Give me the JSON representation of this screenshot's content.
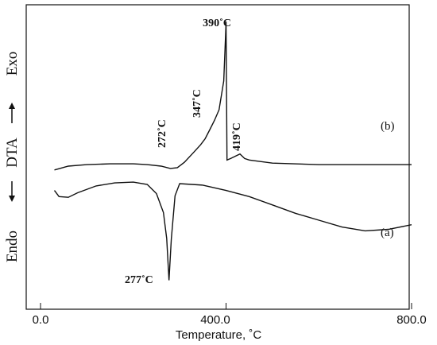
{
  "chart_data": {
    "type": "line",
    "title": "",
    "xlabel": "Temperature, ˚C",
    "ylabel": "DTA",
    "y_top_label": "Exo",
    "y_bottom_label": "Endo",
    "xlim": [
      0,
      800
    ],
    "xticks": [
      0,
      400,
      800
    ],
    "xtick_labels": [
      "0.0",
      "400.0",
      "800.0"
    ],
    "grid": false,
    "legend": "none",
    "y_units": "arbitrary (relative DTA signal, up = exothermic)",
    "ylim": [
      -10,
      30
    ],
    "series": [
      {
        "name": "(b)",
        "x": [
          30,
          60,
          100,
          150,
          200,
          230,
          260,
          280,
          295,
          310,
          330,
          345,
          355,
          365,
          375,
          385,
          395,
          399,
          400,
          402,
          410,
          420,
          430,
          440,
          450,
          500,
          600,
          700,
          800
        ],
        "y": [
          8.3,
          8.8,
          9.0,
          9.1,
          9.1,
          9.0,
          8.8,
          8.5,
          8.6,
          9.3,
          10.6,
          11.6,
          12.4,
          13.6,
          14.8,
          16.2,
          20.0,
          26.0,
          27.8,
          9.6,
          9.8,
          10.1,
          10.4,
          9.8,
          9.6,
          9.2,
          9.0,
          9.0,
          9.0
        ]
      },
      {
        "name": "(a)",
        "x": [
          30,
          40,
          60,
          80,
          120,
          160,
          200,
          230,
          250,
          265,
          272,
          277,
          282,
          290,
          300,
          350,
          400,
          450,
          500,
          550,
          600,
          650,
          700,
          750,
          800
        ],
        "y": [
          5.6,
          4.8,
          4.7,
          5.3,
          6.2,
          6.6,
          6.7,
          6.4,
          5.2,
          2.7,
          -0.7,
          -6.2,
          -0.8,
          4.9,
          6.5,
          6.3,
          5.6,
          4.8,
          3.7,
          2.6,
          1.7,
          0.8,
          0.3,
          0.5,
          1.1
        ]
      }
    ],
    "annotations": [
      "390˚C",
      "347˚C",
      "272˚C",
      "419˚C",
      "277˚C"
    ],
    "series_labels": [
      "(b)",
      "(a)"
    ]
  }
}
